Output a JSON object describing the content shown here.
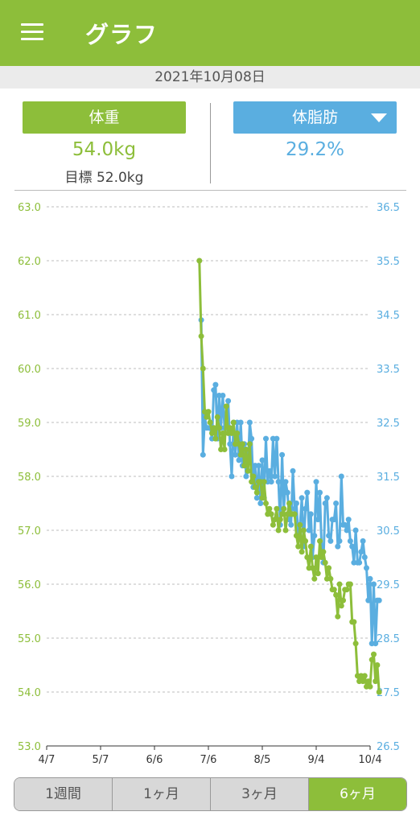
{
  "app": {
    "title": "グラフ"
  },
  "date_label": "2021年10月08日",
  "summary": {
    "left_button": "体重",
    "left_value": "54.0kg",
    "goal": "目標 52.0kg",
    "right_button": "体脂肪",
    "right_value": "29.2%"
  },
  "colors": {
    "weight": "#8dbe3a",
    "bodyfat": "#5aaee0",
    "accent": "#8dbe3a"
  },
  "icons": {
    "menu": "hamburger-menu-icon",
    "dropdown": "triangle-down-icon"
  },
  "tabs": [
    {
      "label": "1週間",
      "active": false
    },
    {
      "label": "1ヶ月",
      "active": false
    },
    {
      "label": "3ヶ月",
      "active": false
    },
    {
      "label": "6ヶ月",
      "active": true
    }
  ],
  "chart_data": {
    "type": "line",
    "x_range": [
      "4/7",
      "10/4"
    ],
    "xticks": [
      "4/7",
      "5/7",
      "6/6",
      "7/6",
      "8/5",
      "9/4",
      "10/4"
    ],
    "y_left": {
      "ticks": [
        "63.0",
        "62.0",
        "61.0",
        "60.0",
        "59.0",
        "58.0",
        "57.0",
        "56.0",
        "55.0",
        "54.0",
        "53.0"
      ],
      "ylim": [
        53.0,
        63.0
      ]
    },
    "y_right": {
      "ticks": [
        "36.5",
        "35.5",
        "34.5",
        "33.5",
        "32.5",
        "31.5",
        "30.5",
        "29.5",
        "28.5",
        "27.5",
        "26.5"
      ],
      "ylim": [
        26.5,
        36.5
      ]
    },
    "grid": true,
    "series": [
      {
        "key": "weight",
        "axis": "left",
        "points": [
          [
            85,
            62.0
          ],
          [
            86,
            60.6
          ],
          [
            87,
            60.0
          ],
          [
            88,
            59.2
          ],
          [
            89,
            59.1
          ],
          [
            90,
            59.2
          ],
          [
            91,
            59.0
          ],
          [
            92,
            58.8
          ],
          [
            93,
            58.9
          ],
          [
            94,
            58.7
          ],
          [
            95,
            59.1
          ],
          [
            96,
            58.9
          ],
          [
            97,
            58.5
          ],
          [
            98,
            58.8
          ],
          [
            99,
            58.5
          ],
          [
            100,
            59.3
          ],
          [
            101,
            58.8
          ],
          [
            102,
            58.9
          ],
          [
            103,
            58.8
          ],
          [
            104,
            59.0
          ],
          [
            105,
            58.6
          ],
          [
            106,
            58.8
          ],
          [
            107,
            58.6
          ],
          [
            108,
            58.4
          ],
          [
            109,
            58.6
          ],
          [
            110,
            58.2
          ],
          [
            111,
            58.5
          ],
          [
            112,
            58.1
          ],
          [
            113,
            58.6
          ],
          [
            114,
            57.9
          ],
          [
            115,
            58.0
          ],
          [
            116,
            57.8
          ],
          [
            117,
            57.7
          ],
          [
            118,
            57.9
          ],
          [
            119,
            57.9
          ],
          [
            120,
            57.6
          ],
          [
            121,
            57.9
          ],
          [
            122,
            57.5
          ],
          [
            123,
            57.3
          ],
          [
            124,
            57.4
          ],
          [
            125,
            57.3
          ],
          [
            126,
            57.1
          ],
          [
            127,
            57.2
          ],
          [
            128,
            57.4
          ],
          [
            129,
            57.0
          ],
          [
            130,
            57.2
          ],
          [
            131,
            57.3
          ],
          [
            132,
            57.4
          ],
          [
            133,
            57.0
          ],
          [
            134,
            57.3
          ],
          [
            135,
            57.5
          ],
          [
            136,
            57.3
          ],
          [
            137,
            57.3
          ],
          [
            138,
            57.3
          ],
          [
            139,
            56.9
          ],
          [
            140,
            56.7
          ],
          [
            141,
            57.1
          ],
          [
            142,
            56.6
          ],
          [
            143,
            57.0
          ],
          [
            144,
            56.8
          ],
          [
            145,
            56.5
          ],
          [
            146,
            56.3
          ],
          [
            147,
            56.7
          ],
          [
            148,
            56.3
          ],
          [
            149,
            56.1
          ],
          [
            150,
            56.5
          ],
          [
            151,
            56.2
          ],
          [
            152,
            56.8
          ],
          [
            153,
            56.5
          ],
          [
            154,
            56.6
          ],
          [
            155,
            56.4
          ],
          [
            156,
            56.1
          ],
          [
            157,
            56.3
          ],
          [
            158,
            56.1
          ],
          [
            159,
            55.9
          ],
          [
            160,
            55.9
          ],
          [
            161,
            55.8
          ],
          [
            162,
            55.4
          ],
          [
            163,
            56.0
          ],
          [
            164,
            55.6
          ],
          [
            165,
            55.7
          ],
          [
            166,
            55.9
          ],
          [
            167,
            55.9
          ],
          [
            168,
            56.0
          ],
          [
            169,
            56.0
          ],
          [
            170,
            55.3
          ],
          [
            171,
            55.3
          ],
          [
            172,
            54.9
          ],
          [
            173,
            54.3
          ],
          [
            174,
            54.2
          ],
          [
            175,
            54.3
          ],
          [
            176,
            54.2
          ],
          [
            177,
            54.3
          ],
          [
            178,
            54.1
          ],
          [
            179,
            54.2
          ],
          [
            180,
            54.1
          ],
          [
            181,
            54.6
          ],
          [
            182,
            54.7
          ],
          [
            183,
            54.2
          ],
          [
            184,
            54.5
          ],
          [
            185,
            54.0
          ]
        ]
      },
      {
        "key": "bodyfat",
        "axis": "right",
        "points": [
          [
            86,
            34.4
          ],
          [
            87,
            31.9
          ],
          [
            88,
            32.6
          ],
          [
            89,
            32.4
          ],
          [
            90,
            32.4
          ],
          [
            91,
            32.4
          ],
          [
            92,
            32.2
          ],
          [
            93,
            33.1
          ],
          [
            94,
            33.2
          ],
          [
            95,
            32.2
          ],
          [
            96,
            33.0
          ],
          [
            97,
            32.4
          ],
          [
            98,
            33.0
          ],
          [
            99,
            32.4
          ],
          [
            100,
            32.4
          ],
          [
            101,
            32.9
          ],
          [
            102,
            32.1
          ],
          [
            103,
            31.5
          ],
          [
            104,
            32.5
          ],
          [
            105,
            31.9
          ],
          [
            106,
            32.5
          ],
          [
            107,
            31.8
          ],
          [
            108,
            32.5
          ],
          [
            109,
            31.7
          ],
          [
            110,
            32.1
          ],
          [
            111,
            31.5
          ],
          [
            112,
            31.6
          ],
          [
            113,
            32.5
          ],
          [
            114,
            32.2
          ],
          [
            115,
            31.3
          ],
          [
            116,
            31.7
          ],
          [
            117,
            31.1
          ],
          [
            118,
            31.7
          ],
          [
            119,
            31.0
          ],
          [
            120,
            31.8
          ],
          [
            121,
            31.1
          ],
          [
            122,
            32.2
          ],
          [
            123,
            31.4
          ],
          [
            124,
            31.6
          ],
          [
            125,
            31.4
          ],
          [
            126,
            32.2
          ],
          [
            127,
            31.5
          ],
          [
            128,
            32.2
          ],
          [
            129,
            31.4
          ],
          [
            130,
            30.6
          ],
          [
            131,
            31.9
          ],
          [
            132,
            30.9
          ],
          [
            133,
            31.4
          ],
          [
            134,
            31.2
          ],
          [
            135,
            30.7
          ],
          [
            136,
            30.6
          ],
          [
            137,
            31.6
          ],
          [
            138,
            30.9
          ],
          [
            139,
            31.0
          ],
          [
            140,
            30.4
          ],
          [
            141,
            30.6
          ],
          [
            142,
            31.1
          ],
          [
            143,
            30.2
          ],
          [
            144,
            30.9
          ],
          [
            145,
            31.2
          ],
          [
            146,
            30.5
          ],
          [
            147,
            30.8
          ],
          [
            148,
            30.0
          ],
          [
            149,
            30.4
          ],
          [
            150,
            31.4
          ],
          [
            151,
            30.7
          ],
          [
            152,
            31.2
          ],
          [
            153,
            30.2
          ],
          [
            154,
            29.9
          ],
          [
            155,
            31.0
          ],
          [
            156,
            31.1
          ],
          [
            157,
            30.4
          ],
          [
            158,
            30.3
          ],
          [
            159,
            30.7
          ],
          [
            160,
            30.7
          ],
          [
            161,
            31.0
          ],
          [
            162,
            30.2
          ],
          [
            163,
            30.3
          ],
          [
            164,
            31.5
          ],
          [
            165,
            30.6
          ],
          [
            166,
            30.6
          ],
          [
            167,
            30.5
          ],
          [
            168,
            30.7
          ],
          [
            169,
            30.3
          ],
          [
            170,
            30.2
          ],
          [
            171,
            29.9
          ],
          [
            172,
            30.5
          ],
          [
            173,
            29.9
          ],
          [
            174,
            29.9
          ],
          [
            175,
            30.1
          ],
          [
            176,
            30.3
          ],
          [
            177,
            30.0
          ],
          [
            178,
            29.8
          ],
          [
            179,
            29.2
          ],
          [
            180,
            29.6
          ],
          [
            181,
            28.4
          ],
          [
            182,
            29.5
          ],
          [
            183,
            28.4
          ],
          [
            184,
            29.2
          ],
          [
            185,
            29.2
          ]
        ]
      }
    ]
  }
}
